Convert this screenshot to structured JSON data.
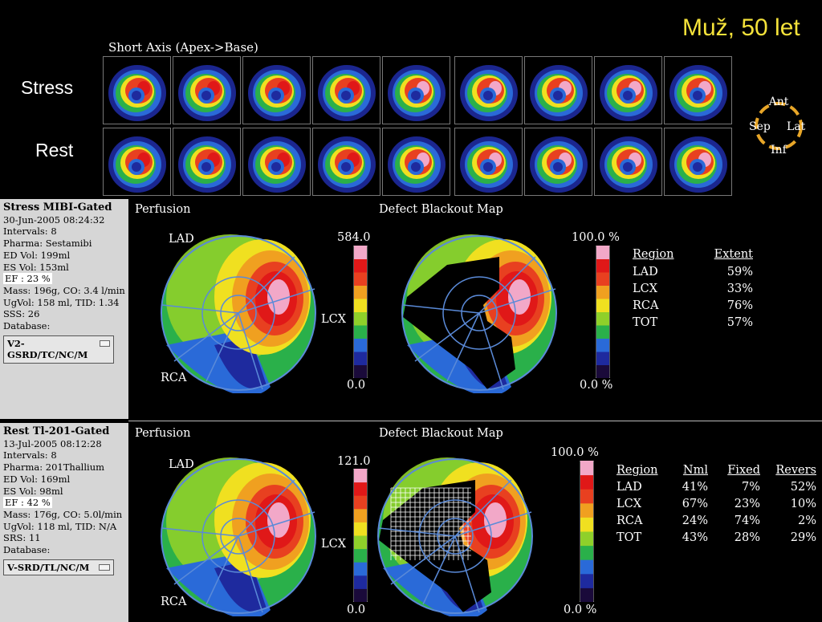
{
  "header_tag": "Muž, 50 let",
  "short_axis": {
    "title": "Short Axis (Apex->Base)",
    "row_labels": [
      "Stress",
      "Rest"
    ],
    "orientation": {
      "top": "Ant",
      "left": "Sep",
      "right": "Lat",
      "bottom": "Inf"
    }
  },
  "stress": {
    "side": {
      "header": "Stress MIBI-Gated",
      "date": "30-Jun-2005 08:24:32",
      "intervals": "Intervals: 8",
      "pharma": "Pharma: Sestamibi",
      "ed_vol": "ED Vol:  199ml",
      "es_vol": "ES Vol:  153ml",
      "ef": "EF : 23 %",
      "mass": "Mass: 196g, CO: 3.4 l/min",
      "ugvol": "UgVol:  158 ml,  TID: 1.34",
      "score": "SSS: 26",
      "database_label": "Database:",
      "database_value": "V2-GSRD/TC/NC/M"
    },
    "perfusion_title": "Perfusion",
    "defect_title": "Defect Blackout Map",
    "scale_max": "584.0",
    "scale_min": "0.0",
    "defect_scale_max": "100.0 %",
    "defect_scale_min": "0.0 %",
    "labels": {
      "lad": "LAD",
      "lcx": "LCX",
      "rca": "RCA"
    },
    "table": {
      "headers": [
        "Region",
        "Extent"
      ],
      "rows": [
        [
          "LAD",
          "59%"
        ],
        [
          "LCX",
          "33%"
        ],
        [
          "RCA",
          "76%"
        ],
        [
          "TOT",
          "57%"
        ]
      ]
    }
  },
  "rest": {
    "side": {
      "header": "Rest Tl-201-Gated",
      "date": "13-Jul-2005 08:12:28",
      "intervals": "Intervals: 8",
      "pharma": "Pharma: 201Thallium",
      "ed_vol": "ED Vol:  169ml",
      "es_vol": "ES Vol:  98ml",
      "ef": "EF : 42 %",
      "mass": "Mass: 176g, CO: 5.0l/min",
      "ugvol": "UgVol:  118 ml,  TID: N/A",
      "score": "SRS: 11",
      "database_label": "Database:",
      "database_value": "V-SRD/TL/NC/M"
    },
    "perfusion_title": "Perfusion",
    "defect_title": "Defect Blackout Map",
    "scale_max": "121.0",
    "scale_min": "0.0",
    "defect_scale_max": "100.0 %",
    "defect_scale_min": "0.0 %",
    "labels": {
      "lad": "LAD",
      "lcx": "LCX",
      "rca": "RCA"
    },
    "table": {
      "headers": [
        "Region",
        "Nml",
        "Fixed",
        "Revers"
      ],
      "rows": [
        [
          "LAD",
          "41%",
          "7%",
          "52%"
        ],
        [
          "LCX",
          "67%",
          "23%",
          "10%"
        ],
        [
          "RCA",
          "24%",
          "74%",
          "2%"
        ],
        [
          "TOT",
          "43%",
          "28%",
          "29%"
        ]
      ]
    }
  },
  "colors": {
    "scale": [
      "#1a0a3a",
      "#1e2a9e",
      "#2a6ad8",
      "#2ab04a",
      "#8fd02a",
      "#f0e020",
      "#f0a020",
      "#e84020",
      "#e01818",
      "#f2a8c8"
    ]
  }
}
